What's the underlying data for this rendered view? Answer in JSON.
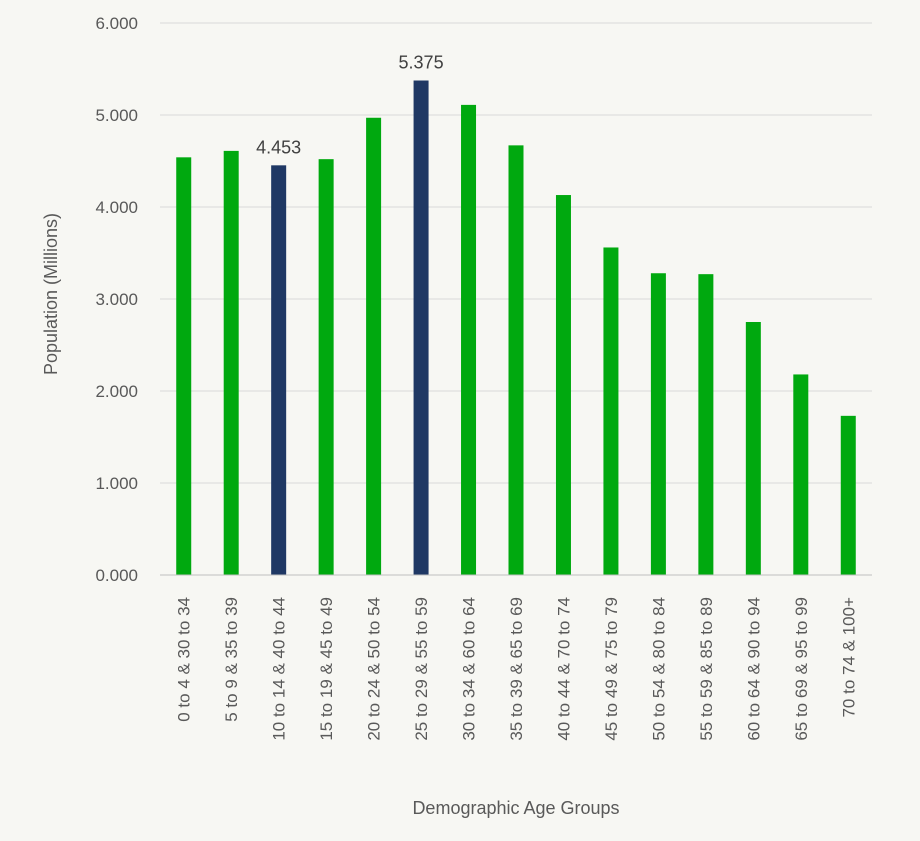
{
  "chart_data": {
    "type": "bar",
    "title": "",
    "xlabel": "Demographic Age Groups",
    "ylabel": "Population (Millions)",
    "ylim": [
      0,
      6
    ],
    "yticks": [
      "0.000",
      "1.000",
      "2.000",
      "3.000",
      "4.000",
      "5.000",
      "6.000"
    ],
    "grid": true,
    "legend": "none",
    "colors": {
      "default": "#00a90f",
      "highlight": "#1f3864",
      "grid": "#d9d9d9",
      "axis": "#bfbfbf"
    },
    "categories": [
      "0 to 4 & 30 to 34",
      "5 to 9 & 35 to 39",
      "10 to 14 & 40 to 44",
      "15 to 19 & 45 to 49",
      "20 to 24 & 50 to 54",
      "25 to 29 & 55 to 59",
      "30 to 34 & 60 to 64",
      "35 to 39 & 65 to 69",
      "40 to 44 & 70 to 74",
      "45 to 49 & 75 to 79",
      "50 to 54 & 80 to 84",
      "55 to 59 & 85 to 89",
      "60 to 64 & 90 to 94",
      "65 to 69 & 95 to 99",
      "70 to 74 & 100+"
    ],
    "values": [
      4.54,
      4.61,
      4.453,
      4.52,
      4.97,
      5.375,
      5.11,
      4.67,
      4.13,
      3.56,
      3.28,
      3.27,
      2.75,
      2.18,
      1.73
    ],
    "highlighted": [
      false,
      false,
      true,
      false,
      false,
      true,
      false,
      false,
      false,
      false,
      false,
      false,
      false,
      false,
      false
    ],
    "data_labels": [
      "",
      "",
      "4.453",
      "",
      "",
      "5.375",
      "",
      "",
      "",
      "",
      "",
      "",
      "",
      "",
      ""
    ]
  }
}
